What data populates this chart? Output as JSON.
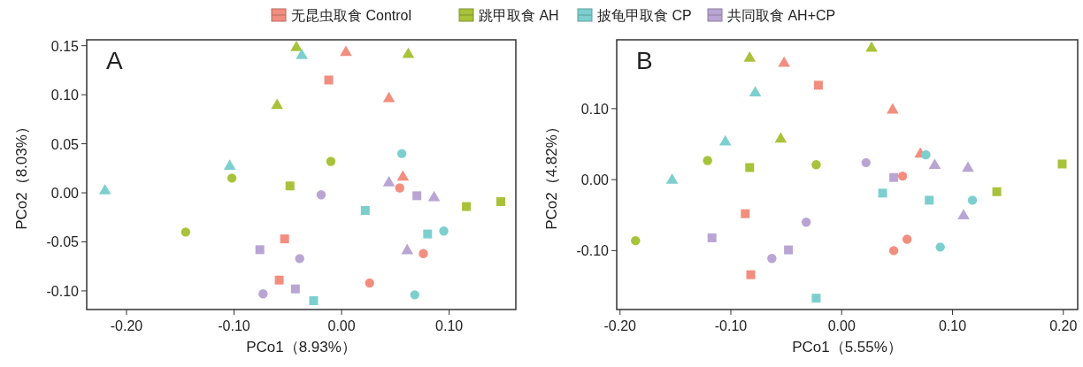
{
  "chart_data": [
    {
      "type": "scatter",
      "title": "A",
      "xlabel": "PCo1（8.93%）",
      "ylabel": "PCo2（8.03%）",
      "legend": "top",
      "grid": false,
      "xlim": [
        -0.237,
        0.162
      ],
      "ylim": [
        -0.119,
        0.156
      ],
      "xticks": [
        {
          "value": -0.2,
          "label": "-0.20"
        },
        {
          "value": -0.1,
          "label": "-0.10"
        },
        {
          "value": 0,
          "label": "0.00"
        },
        {
          "value": 0.1,
          "label": "0.10"
        }
      ],
      "yticks": [
        {
          "value": -0.1,
          "label": "-0.10"
        },
        {
          "value": -0.05,
          "label": "-0.05"
        },
        {
          "value": 0,
          "label": "0.00"
        },
        {
          "value": 0.05,
          "label": "0.05"
        },
        {
          "value": 0.1,
          "label": "0.10"
        },
        {
          "value": 0.15,
          "label": "0.15"
        }
      ],
      "series": [
        {
          "name": "无昆虫取食  Control",
          "color": "#f28e7f",
          "marker": "circle",
          "x": [
            0.054,
            0.076,
            0.026
          ],
          "values": [
            0.005,
            -0.062,
            -0.092
          ]
        },
        {
          "color": "#f28e7f",
          "marker": "square",
          "x": [
            -0.012,
            -0.053,
            -0.058
          ],
          "values": [
            0.115,
            -0.047,
            -0.089
          ]
        },
        {
          "color": "#f28e7f",
          "marker": "triangle",
          "x": [
            0.004,
            0.044,
            0.057
          ],
          "values": [
            0.143,
            0.096,
            0.016
          ]
        },
        {
          "name": "跳甲取食  AH",
          "color": "#a8c23a",
          "marker": "circle",
          "x": [
            -0.01,
            -0.102,
            -0.145
          ],
          "values": [
            0.032,
            0.015,
            -0.04
          ]
        },
        {
          "color": "#a8c23a",
          "marker": "square",
          "x": [
            -0.048,
            0.116,
            0.148
          ],
          "values": [
            0.007,
            -0.014,
            -0.009
          ]
        },
        {
          "color": "#a8c23a",
          "marker": "triangle",
          "x": [
            -0.042,
            0.062,
            -0.06
          ],
          "values": [
            0.148,
            0.141,
            0.089
          ]
        },
        {
          "name": "披龟甲取食  CP",
          "color": "#7dcfcf",
          "marker": "circle",
          "x": [
            0.056,
            0.095,
            0.068
          ],
          "values": [
            0.04,
            -0.039,
            -0.104
          ]
        },
        {
          "color": "#7dcfcf",
          "marker": "square",
          "x": [
            0.022,
            0.08,
            -0.026
          ],
          "values": [
            -0.018,
            -0.042,
            -0.11
          ]
        },
        {
          "color": "#7dcfcf",
          "marker": "triangle",
          "x": [
            -0.037,
            -0.22,
            -0.104
          ],
          "values": [
            0.14,
            0.002,
            0.027
          ]
        },
        {
          "name": "共同取食  AH+CP",
          "color": "#b9a5d4",
          "marker": "circle",
          "x": [
            -0.019,
            -0.039,
            -0.073
          ],
          "values": [
            -0.002,
            -0.067,
            -0.103
          ]
        },
        {
          "color": "#b9a5d4",
          "marker": "square",
          "x": [
            0.07,
            -0.076,
            -0.043
          ],
          "values": [
            -0.003,
            -0.058,
            -0.098
          ]
        },
        {
          "color": "#b9a5d4",
          "marker": "triangle",
          "x": [
            0.044,
            0.086,
            0.061
          ],
          "values": [
            0.01,
            -0.005,
            -0.059
          ]
        }
      ]
    },
    {
      "type": "scatter",
      "title": "B",
      "xlabel": "PCo1（5.55%）",
      "ylabel": "PCo2（4.82%）",
      "grid": false,
      "xlim": [
        -0.203,
        0.213
      ],
      "ylim": [
        -0.183,
        0.197
      ],
      "xticks": [
        {
          "value": -0.2,
          "label": "-0.20"
        },
        {
          "value": -0.1,
          "label": "-0.10"
        },
        {
          "value": 0,
          "label": "0.00"
        },
        {
          "value": 0.1,
          "label": "0.10"
        },
        {
          "value": 0.2,
          "label": "0.20"
        }
      ],
      "yticks": [
        {
          "value": -0.1,
          "label": "-0.10"
        },
        {
          "value": 0,
          "label": "0.00"
        },
        {
          "value": 0.1,
          "label": "0.10"
        }
      ],
      "series": [
        {
          "color": "#f28e7f",
          "marker": "circle",
          "x": [
            0.055,
            0.059,
            0.047
          ],
          "values": [
            0.005,
            -0.084,
            -0.1
          ]
        },
        {
          "color": "#f28e7f",
          "marker": "square",
          "x": [
            -0.021,
            -0.087,
            -0.082
          ],
          "values": [
            0.133,
            -0.048,
            -0.134
          ]
        },
        {
          "color": "#f28e7f",
          "marker": "triangle",
          "x": [
            -0.052,
            0.046,
            0.071
          ],
          "values": [
            0.164,
            0.098,
            0.036
          ]
        },
        {
          "color": "#a8c23a",
          "marker": "circle",
          "x": [
            -0.121,
            -0.023,
            -0.186
          ],
          "values": [
            0.027,
            0.021,
            -0.086
          ]
        },
        {
          "color": "#a8c23a",
          "marker": "square",
          "x": [
            -0.083,
            0.14,
            0.199
          ],
          "values": [
            0.017,
            -0.017,
            0.022
          ]
        },
        {
          "color": "#a8c23a",
          "marker": "triangle",
          "x": [
            -0.083,
            0.027,
            -0.055
          ],
          "values": [
            0.171,
            0.185,
            0.057
          ]
        },
        {
          "color": "#7dcfcf",
          "marker": "circle",
          "x": [
            0.076,
            0.118,
            0.089
          ],
          "values": [
            0.035,
            -0.029,
            -0.095
          ]
        },
        {
          "color": "#7dcfcf",
          "marker": "square",
          "x": [
            0.037,
            0.079,
            -0.023
          ],
          "values": [
            -0.019,
            -0.029,
            -0.167
          ]
        },
        {
          "color": "#7dcfcf",
          "marker": "triangle",
          "x": [
            -0.078,
            -0.105,
            -0.153
          ],
          "values": [
            0.122,
            0.053,
            -0.001
          ]
        },
        {
          "color": "#b9a5d4",
          "marker": "circle",
          "x": [
            0.022,
            -0.032,
            -0.063
          ],
          "values": [
            0.024,
            -0.06,
            -0.111
          ]
        },
        {
          "color": "#b9a5d4",
          "marker": "square",
          "x": [
            0.047,
            -0.117,
            -0.048
          ],
          "values": [
            0.003,
            -0.082,
            -0.099
          ]
        },
        {
          "color": "#b9a5d4",
          "marker": "triangle",
          "x": [
            0.084,
            0.114,
            0.11
          ],
          "values": [
            0.02,
            0.016,
            -0.051
          ]
        }
      ]
    }
  ]
}
